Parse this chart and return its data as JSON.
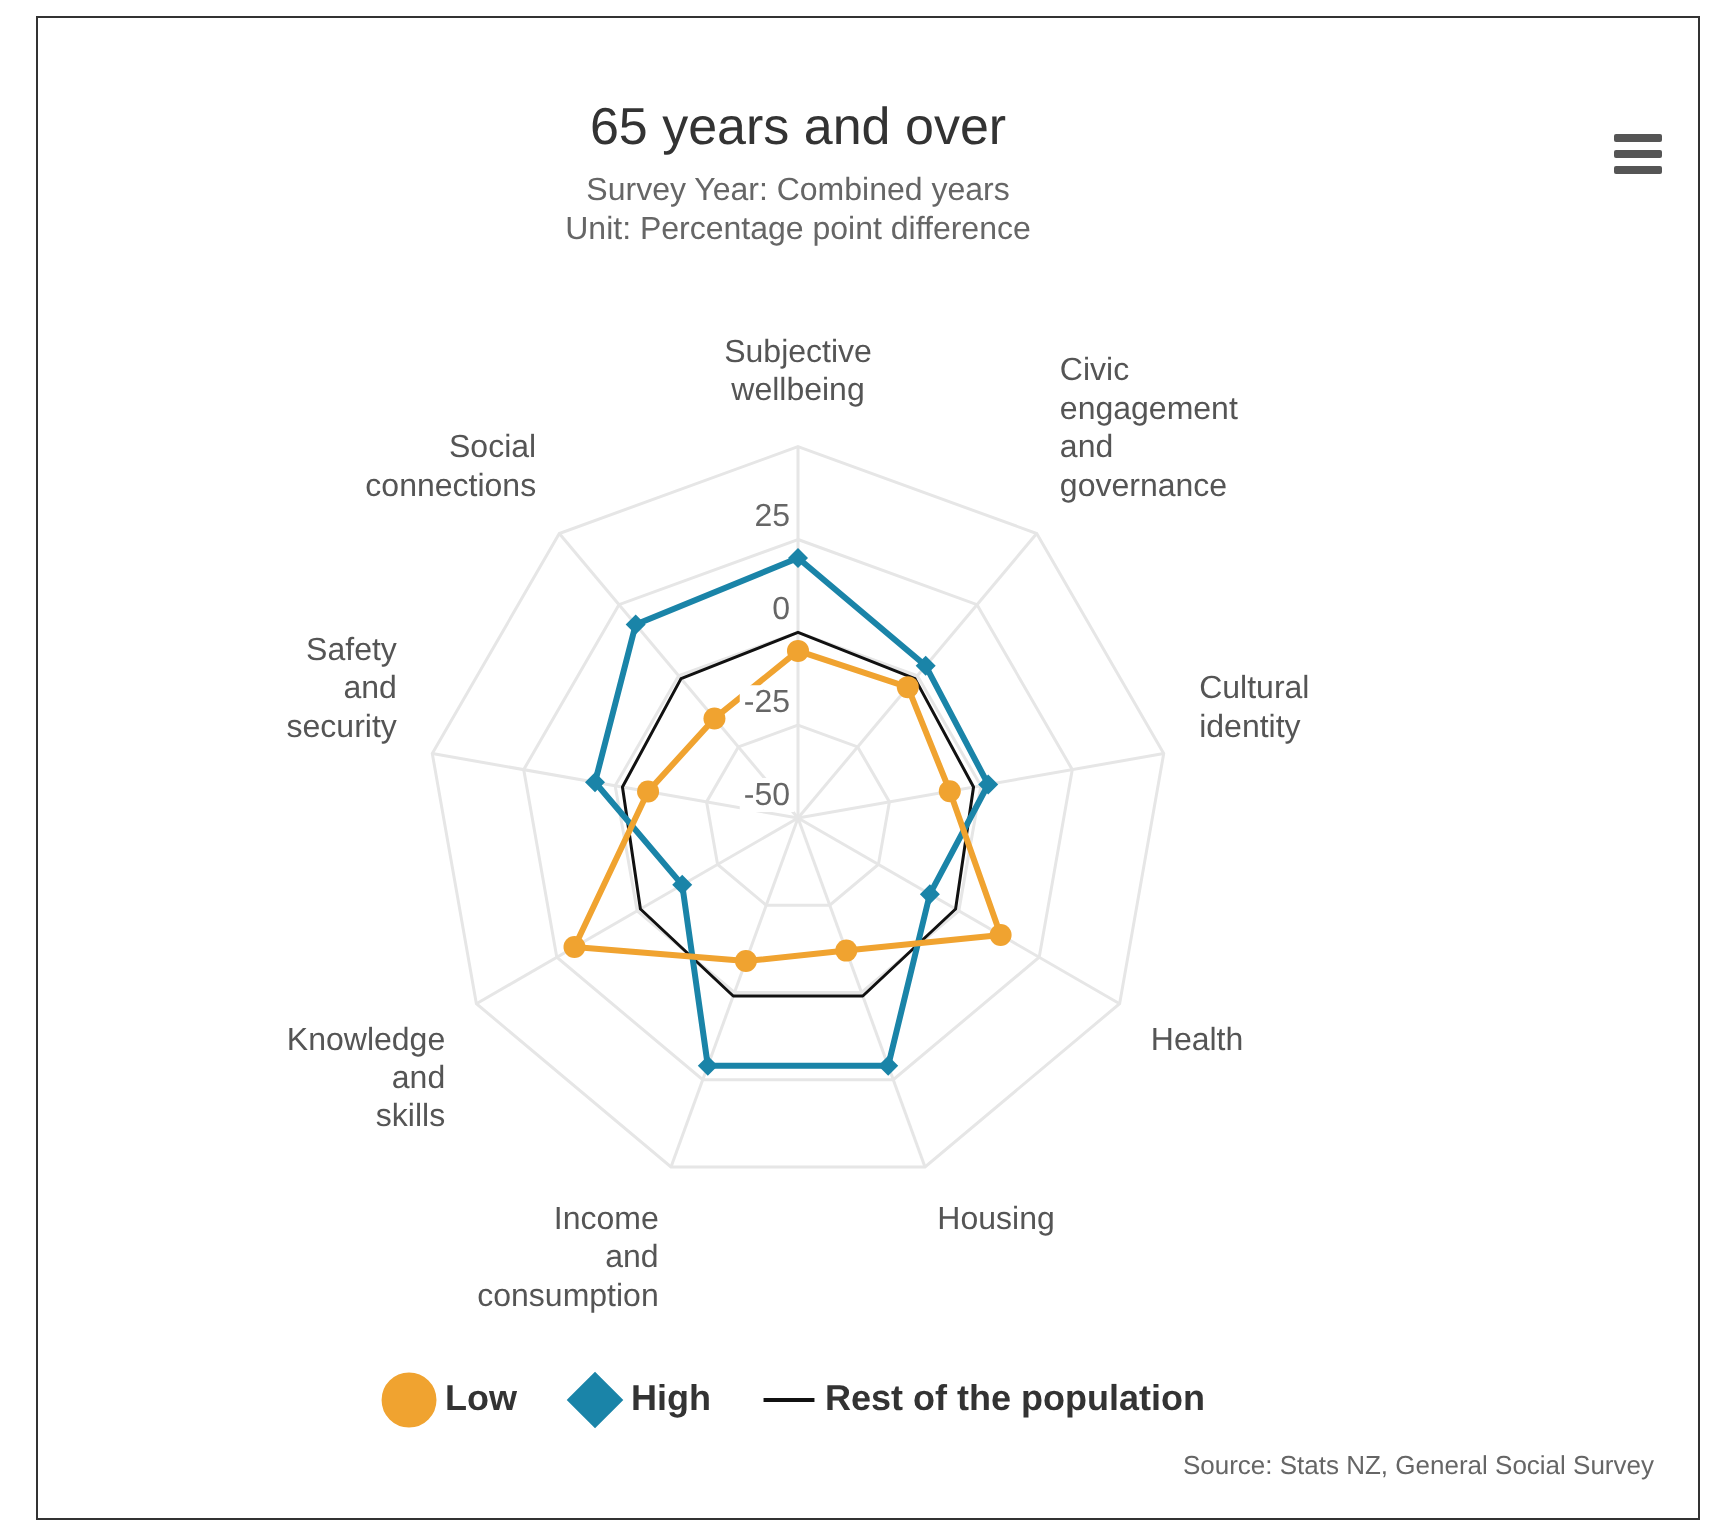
{
  "chart_data": {
    "type": "radar",
    "title": "65 years and over",
    "subtitle": "Survey Year: Combined years\nUnit: Percentage point difference",
    "categories": [
      "Subjective wellbeing",
      "Civic engagement and governance",
      "Cultural identity",
      "Health",
      "Housing",
      "Income and consumption",
      "Knowledge and skills",
      "Safety and security",
      "Social connections"
    ],
    "series": [
      {
        "name": "Low",
        "color": "#f0a330",
        "marker": "circle",
        "values": [
          -5,
          -4,
          -8.5,
          13,
          -12,
          -9,
          19.5,
          -9,
          -15
        ]
      },
      {
        "name": "High",
        "color": "#1a84a8",
        "marker": "diamond",
        "values": [
          20,
          3.5,
          2,
          -9,
          21,
          21,
          -14,
          5.5,
          18
        ]
      },
      {
        "name": "Rest of the population",
        "color": "#111111",
        "marker": "none",
        "values": [
          0,
          -1,
          -2,
          -1,
          1,
          1,
          -1,
          -2,
          -1
        ]
      }
    ],
    "ylim": [
      -50,
      50
    ],
    "yticks": [
      -50,
      -25,
      0,
      25
    ],
    "grid": true,
    "legend": "bottom",
    "annotations": [
      "Source: Stats NZ, General Social Survey"
    ]
  }
}
